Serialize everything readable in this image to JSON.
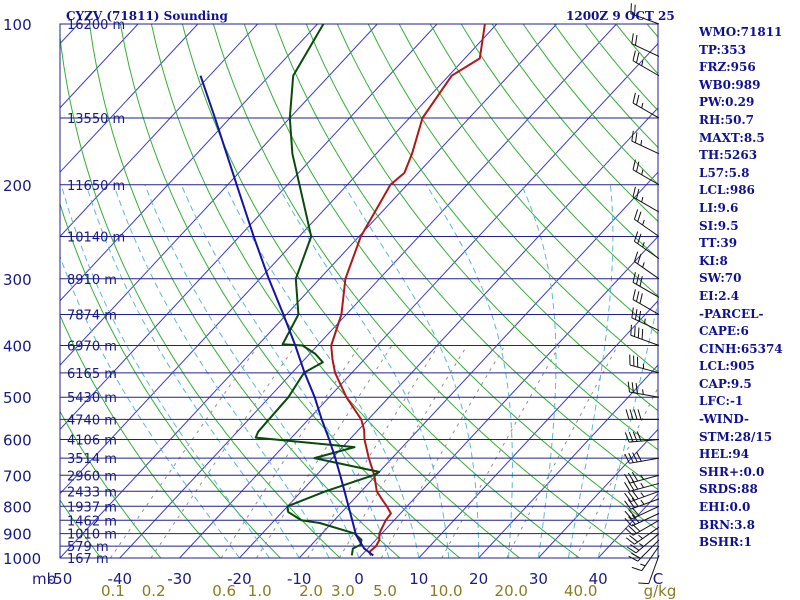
{
  "header": {
    "title_left": "CYZV (71811) Sounding",
    "title_right": "1200Z  9 OCT 25"
  },
  "indices": [
    "WMO:71811",
    "TP:353",
    "FRZ:956",
    "WB0:989",
    "PW:0.29",
    "RH:50.7",
    "MAXT:8.5",
    "TH:5263",
    "L57:5.8",
    "LCL:986",
    "LI:9.6",
    "SI:9.5",
    "TT:39",
    "KI:8",
    "SW:70",
    "EI:2.4",
    "-PARCEL-",
    "CAPE:6",
    "CINH:65374",
    "LCL:905",
    "CAP:9.5",
    "LFC:-1",
    "-WIND-",
    "STM:28/15",
    "HEL:94",
    "SHR+:0.0",
    "SRDS:88",
    "EHI:0.0",
    "BRN:3.8",
    "BSHR:1"
  ],
  "chart_data": {
    "type": "line",
    "chart_kind": "Skew-T log-P sounding diagram",
    "x_axis": {
      "unit_label": "C",
      "ticks": [
        -50,
        -40,
        -30,
        -20,
        -10,
        0,
        10,
        20,
        30,
        40
      ],
      "tick_labels": [
        "-50",
        "-40",
        "-30",
        "-20",
        "-10",
        "0",
        "10",
        "20",
        "30",
        "40"
      ]
    },
    "y_axis": {
      "unit_label": "mb",
      "scale": "log",
      "range": [
        1000,
        100
      ],
      "tick_values": [
        1000,
        900,
        800,
        700,
        600,
        500,
        400,
        300,
        200,
        100
      ],
      "tick_labels": [
        "1000",
        "900",
        "800",
        "700",
        "600",
        "500",
        "400",
        "300",
        "200",
        "100"
      ]
    },
    "height_labels": [
      {
        "p": 100,
        "label": "16200 m"
      },
      {
        "p": 150,
        "label": "13550 m"
      },
      {
        "p": 200,
        "label": "11650 m"
      },
      {
        "p": 250,
        "label": "10140 m"
      },
      {
        "p": 300,
        "label": "8910 m"
      },
      {
        "p": 350,
        "label": "7874 m"
      },
      {
        "p": 400,
        "label": "6970 m"
      },
      {
        "p": 450,
        "label": "6165 m"
      },
      {
        "p": 500,
        "label": "5430 m"
      },
      {
        "p": 550,
        "label": "4740 m"
      },
      {
        "p": 600,
        "label": "4106 m"
      },
      {
        "p": 650,
        "label": "3514 m"
      },
      {
        "p": 700,
        "label": "2960 m"
      },
      {
        "p": 750,
        "label": "2433 m"
      },
      {
        "p": 800,
        "label": "1937 m"
      },
      {
        "p": 850,
        "label": "1462 m"
      },
      {
        "p": 900,
        "label": "1010 m"
      },
      {
        "p": 950,
        "label": "579 m"
      },
      {
        "p": 1000,
        "label": "167 m"
      }
    ],
    "mixing_ratio_axis": {
      "unit_label": "g/kg",
      "values": [
        0.1,
        0.2,
        0.6,
        1.0,
        2.0,
        3.0,
        5.0,
        10.0,
        20.0,
        40.0
      ],
      "labels": [
        "0.1",
        "0.2",
        "0.6",
        "1.0",
        "2.0",
        "3.0",
        "5.0",
        "10.0",
        "20.0",
        "40.0"
      ]
    },
    "series": [
      {
        "role": "temperature",
        "color": "#b01818",
        "points": [
          {
            "p": 989,
            "t": 1.6
          },
          {
            "p": 975,
            "t": 0.8
          },
          {
            "p": 950,
            "t": 1.0
          },
          {
            "p": 925,
            "t": 0.6
          },
          {
            "p": 900,
            "t": -0.4
          },
          {
            "p": 850,
            "t": -1.4
          },
          {
            "p": 825,
            "t": -1.6
          },
          {
            "p": 800,
            "t": -3.4
          },
          {
            "p": 775,
            "t": -5.4
          },
          {
            "p": 750,
            "t": -7.4
          },
          {
            "p": 700,
            "t": -10.3
          },
          {
            "p": 650,
            "t": -13.9
          },
          {
            "p": 600,
            "t": -17.5
          },
          {
            "p": 575,
            "t": -19.1
          },
          {
            "p": 550,
            "t": -21.2
          },
          {
            "p": 500,
            "t": -27.1
          },
          {
            "p": 450,
            "t": -32.8
          },
          {
            "p": 425,
            "t": -35.3
          },
          {
            "p": 400,
            "t": -37.7
          },
          {
            "p": 350,
            "t": -40.8
          },
          {
            "p": 300,
            "t": -45.7
          },
          {
            "p": 250,
            "t": -49.7
          },
          {
            "p": 200,
            "t": -52.8
          },
          {
            "p": 190,
            "t": -52.3
          },
          {
            "p": 175,
            "t": -54.0
          },
          {
            "p": 150,
            "t": -57.8
          },
          {
            "p": 125,
            "t": -59.5
          },
          {
            "p": 116,
            "t": -57.5
          },
          {
            "p": 100,
            "t": -62.0
          }
        ]
      },
      {
        "role": "dewpoint",
        "color": "#0a4a0a",
        "points": [
          {
            "p": 989,
            "t": -1.6
          },
          {
            "p": 960,
            "t": -2.5
          },
          {
            "p": 945,
            "t": -1.8
          },
          {
            "p": 925,
            "t": -2.4
          },
          {
            "p": 900,
            "t": -4.5
          },
          {
            "p": 860,
            "t": -12.0
          },
          {
            "p": 850,
            "t": -15.5
          },
          {
            "p": 820,
            "t": -19.0
          },
          {
            "p": 800,
            "t": -20.0
          },
          {
            "p": 750,
            "t": -16.0
          },
          {
            "p": 700,
            "t": -10.5
          },
          {
            "p": 690,
            "t": -10.0
          },
          {
            "p": 650,
            "t": -23.0
          },
          {
            "p": 620,
            "t": -18.0
          },
          {
            "p": 595,
            "t": -36.0
          },
          {
            "p": 580,
            "t": -36.5
          },
          {
            "p": 500,
            "t": -36.8
          },
          {
            "p": 450,
            "t": -38.0
          },
          {
            "p": 430,
            "t": -36.5
          },
          {
            "p": 415,
            "t": -39.0
          },
          {
            "p": 400,
            "t": -42.5
          },
          {
            "p": 398,
            "t": -46.0
          },
          {
            "p": 350,
            "t": -48.0
          },
          {
            "p": 300,
            "t": -54.0
          },
          {
            "p": 250,
            "t": -58.0
          },
          {
            "p": 200,
            "t": -68.0
          },
          {
            "p": 175,
            "t": -74.0
          },
          {
            "p": 150,
            "t": -80.0
          },
          {
            "p": 125,
            "t": -86.0
          },
          {
            "p": 100,
            "t": -89.0
          }
        ]
      },
      {
        "role": "parcel",
        "color": "#1414a0",
        "points": [
          {
            "p": 989,
            "t": 2.0
          },
          {
            "p": 960,
            "t": -0.6
          },
          {
            "p": 930,
            "t": -2.5
          },
          {
            "p": 905,
            "t": -4.1
          },
          {
            "p": 850,
            "t": -7.0
          },
          {
            "p": 800,
            "t": -9.8
          },
          {
            "p": 750,
            "t": -12.8
          },
          {
            "p": 700,
            "t": -16.0
          },
          {
            "p": 650,
            "t": -19.5
          },
          {
            "p": 600,
            "t": -23.4
          },
          {
            "p": 550,
            "t": -27.8
          },
          {
            "p": 500,
            "t": -32.4
          },
          {
            "p": 450,
            "t": -37.9
          },
          {
            "p": 400,
            "t": -43.7
          },
          {
            "p": 350,
            "t": -50.5
          },
          {
            "p": 300,
            "t": -58.5
          },
          {
            "p": 250,
            "t": -67.6
          },
          {
            "p": 200,
            "t": -78.5
          },
          {
            "p": 150,
            "t": -92.5
          },
          {
            "p": 125,
            "t": -101.5
          }
        ]
      }
    ],
    "wind_barbs": [
      {
        "p": 989,
        "dir": 200,
        "kt": 10
      },
      {
        "p": 950,
        "dir": 215,
        "kt": 15
      },
      {
        "p": 925,
        "dir": 225,
        "kt": 20
      },
      {
        "p": 900,
        "dir": 230,
        "kt": 25
      },
      {
        "p": 875,
        "dir": 235,
        "kt": 25
      },
      {
        "p": 850,
        "dir": 240,
        "kt": 30
      },
      {
        "p": 825,
        "dir": 245,
        "kt": 30
      },
      {
        "p": 800,
        "dir": 245,
        "kt": 30
      },
      {
        "p": 775,
        "dir": 250,
        "kt": 35
      },
      {
        "p": 750,
        "dir": 250,
        "kt": 35
      },
      {
        "p": 725,
        "dir": 255,
        "kt": 35
      },
      {
        "p": 700,
        "dir": 255,
        "kt": 35
      },
      {
        "p": 650,
        "dir": 260,
        "kt": 40
      },
      {
        "p": 600,
        "dir": 265,
        "kt": 40
      },
      {
        "p": 550,
        "dir": 270,
        "kt": 40
      },
      {
        "p": 500,
        "dir": 280,
        "kt": 35
      },
      {
        "p": 450,
        "dir": 285,
        "kt": 35
      },
      {
        "p": 400,
        "dir": 290,
        "kt": 40
      },
      {
        "p": 375,
        "dir": 295,
        "kt": 35
      },
      {
        "p": 350,
        "dir": 300,
        "kt": 30
      },
      {
        "p": 325,
        "dir": 300,
        "kt": 30
      },
      {
        "p": 300,
        "dir": 305,
        "kt": 25
      },
      {
        "p": 275,
        "dir": 305,
        "kt": 25
      },
      {
        "p": 250,
        "dir": 305,
        "kt": 25
      },
      {
        "p": 225,
        "dir": 300,
        "kt": 25
      },
      {
        "p": 200,
        "dir": 300,
        "kt": 25
      },
      {
        "p": 175,
        "dir": 295,
        "kt": 25
      },
      {
        "p": 150,
        "dir": 300,
        "kt": 25
      },
      {
        "p": 125,
        "dir": 300,
        "kt": 25
      },
      {
        "p": 115,
        "dir": 295,
        "kt": 20
      },
      {
        "p": 100,
        "dir": 290,
        "kt": 20
      }
    ],
    "colors": {
      "isobars": "#202090",
      "isotherms": "#3a3ad0",
      "dry_adiabats": "#34b034",
      "moist_adiabats": "#5ab8d8",
      "mixing_ratio_lines": "#909090",
      "text": "#1a1a80",
      "mixing_ratio_labels": "#8a7a20"
    }
  }
}
